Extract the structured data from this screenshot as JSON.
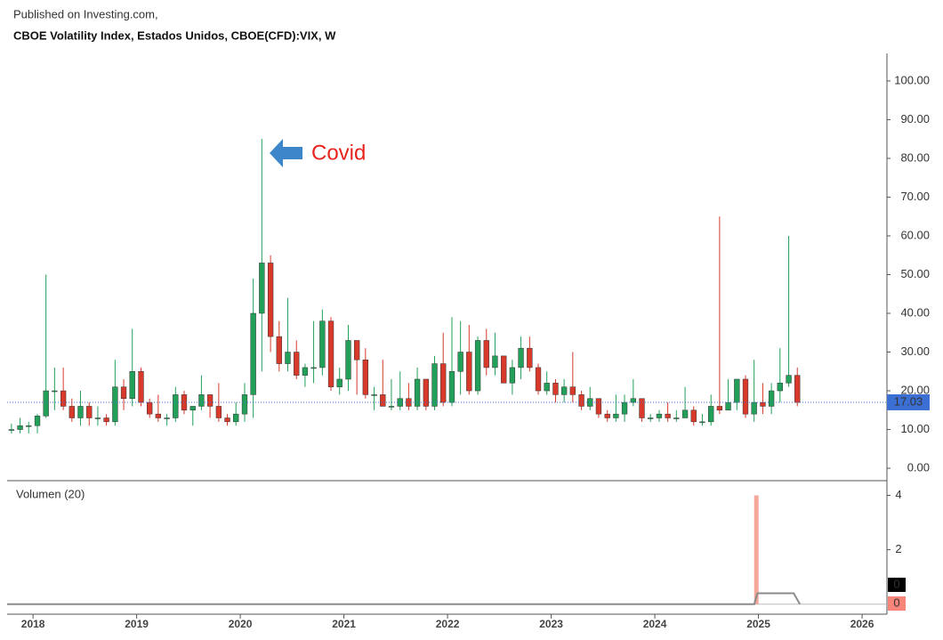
{
  "header": {
    "source": "Published on Investing.com, ",
    "title": "CBOE Volatility Index, Estados Unidos, CBOE(CFD):VIX, W"
  },
  "chart_data": {
    "type": "candlestick",
    "x": [
      2017.792,
      2017.875,
      2017.958,
      2018.042,
      2018.125,
      2018.208,
      2018.292,
      2018.375,
      2018.458,
      2018.542,
      2018.625,
      2018.708,
      2018.792,
      2018.875,
      2018.958,
      2019.042,
      2019.125,
      2019.208,
      2019.292,
      2019.375,
      2019.458,
      2019.542,
      2019.625,
      2019.708,
      2019.792,
      2019.875,
      2019.958,
      2020.042,
      2020.125,
      2020.208,
      2020.292,
      2020.375,
      2020.458,
      2020.542,
      2020.625,
      2020.708,
      2020.792,
      2020.875,
      2020.958,
      2021.042,
      2021.125,
      2021.208,
      2021.292,
      2021.375,
      2021.458,
      2021.542,
      2021.625,
      2021.708,
      2021.792,
      2021.875,
      2021.958,
      2022.042,
      2022.125,
      2022.208,
      2022.292,
      2022.375,
      2022.458,
      2022.542,
      2022.625,
      2022.708,
      2022.792,
      2022.875,
      2022.958,
      2023.042,
      2023.125,
      2023.208,
      2023.292,
      2023.375,
      2023.458,
      2023.542,
      2023.625,
      2023.708,
      2023.792,
      2023.875,
      2023.958,
      2024.042,
      2024.125,
      2024.208,
      2024.292,
      2024.375,
      2024.458,
      2024.542,
      2024.625,
      2024.708,
      2024.792,
      2024.875,
      2024.958,
      2025.042,
      2025.125,
      2025.208,
      2025.292,
      2025.375
    ],
    "open": [
      10,
      10,
      11,
      11,
      13.5,
      20,
      20,
      16,
      13,
      16,
      13,
      13,
      12,
      21,
      18,
      25,
      17,
      14,
      13,
      13,
      19,
      15,
      16,
      19,
      16,
      13,
      12,
      14,
      19,
      40,
      53,
      34,
      27,
      30,
      24,
      26,
      26,
      38,
      21,
      23,
      33,
      28,
      19,
      19,
      16,
      16,
      18,
      16,
      23,
      16,
      27,
      17,
      25,
      30,
      20,
      33,
      26,
      29,
      22,
      26,
      31,
      26,
      20,
      22,
      19,
      21,
      19,
      16,
      18,
      14,
      13,
      14,
      17,
      18,
      13,
      13,
      14,
      13,
      13,
      15,
      12,
      12,
      16,
      15,
      17,
      23,
      14,
      17,
      16,
      20,
      22,
      24
    ],
    "high": [
      11.5,
      13,
      12,
      14,
      50,
      26,
      26,
      18,
      20,
      17,
      16,
      14,
      28,
      23,
      36,
      26,
      18,
      19,
      14,
      21,
      20,
      16,
      24,
      19,
      22,
      14,
      17,
      22,
      49,
      85,
      55,
      38,
      44,
      33,
      27,
      38,
      41,
      39,
      26,
      37,
      33,
      31,
      21,
      28,
      23,
      25,
      22,
      26,
      23,
      29,
      35,
      39,
      38,
      37,
      34,
      36,
      35,
      29,
      28,
      34,
      34,
      27,
      25,
      23,
      23,
      30,
      20,
      21,
      18,
      15,
      19,
      19,
      23,
      18,
      14,
      15,
      17,
      15,
      21,
      16,
      14,
      19,
      65,
      23,
      23,
      24,
      28,
      22,
      22,
      31,
      60,
      26
    ],
    "low": [
      9,
      9,
      9,
      9,
      13,
      15,
      15,
      12,
      11,
      11,
      11,
      11,
      11,
      15,
      16,
      16,
      13,
      12,
      11,
      12,
      14,
      11,
      15,
      13,
      12,
      11,
      11,
      12,
      13,
      25,
      30,
      25,
      25,
      23,
      21,
      22,
      24,
      20,
      19,
      20,
      19,
      18,
      15,
      16,
      15,
      15,
      15,
      15,
      15,
      15,
      16,
      16,
      19,
      19,
      19,
      24,
      24,
      22,
      19,
      23,
      25,
      19,
      19,
      17,
      17,
      17,
      15,
      15,
      13,
      12,
      12,
      12,
      16,
      12,
      12,
      12,
      12,
      12,
      13,
      11,
      11,
      11,
      14,
      15,
      15,
      13,
      12,
      14,
      14,
      17,
      21,
      16
    ],
    "close": [
      10,
      11,
      11,
      13.5,
      20,
      20,
      16,
      13,
      16,
      13,
      13,
      12,
      21,
      18,
      25,
      17,
      14,
      13,
      13,
      19,
      15,
      16,
      19,
      16,
      13,
      12,
      14,
      19,
      40,
      53,
      34,
      27,
      30,
      24,
      26,
      26,
      38,
      21,
      23,
      33,
      28,
      19,
      19,
      16,
      16,
      18,
      16,
      23,
      16,
      27,
      17,
      25,
      30,
      20,
      33,
      26,
      29,
      22,
      26,
      31,
      26,
      20,
      22,
      19,
      21,
      19,
      16,
      18,
      14,
      13,
      14,
      17,
      18,
      13,
      13,
      14,
      13,
      13,
      15,
      12,
      12,
      16,
      15,
      17,
      23,
      14,
      17,
      16,
      20,
      22,
      24,
      17
    ],
    "up_color": "#22a05a",
    "down_color": "#d8392b",
    "xlim": [
      2017.75,
      2026.24
    ],
    "xticks": [
      2018,
      2019,
      2020,
      2021,
      2022,
      2023,
      2024,
      2025,
      2026
    ],
    "ylim": [
      -3.2,
      107.1
    ],
    "yticks": [
      {
        "value": 0,
        "label": "0.00"
      },
      {
        "value": 10,
        "label": "10.00"
      },
      {
        "value": 20,
        "label": "20.00"
      },
      {
        "value": 30,
        "label": "30.00"
      },
      {
        "value": 40,
        "label": "40.00"
      },
      {
        "value": 50,
        "label": "50.00"
      },
      {
        "value": 60,
        "label": "60.00"
      },
      {
        "value": 70,
        "label": "70.00"
      },
      {
        "value": 80,
        "label": "80.00"
      },
      {
        "value": 90,
        "label": "90.00"
      },
      {
        "value": 100,
        "label": "100.00"
      }
    ],
    "last_value": 17.03,
    "annotation": "Covid",
    "volume": {
      "label": "Volumen (20)",
      "x": [
        2024.98
      ],
      "values": [
        4
      ],
      "color": "#f4a79a",
      "ma_x": [
        2017.75,
        2024.96,
        2024.99,
        2025.34,
        2025.4
      ],
      "ma_values": [
        0,
        0,
        0.4,
        0.4,
        0
      ],
      "ma_color": "#8c8c8c",
      "ylim": [
        -0.37,
        4.54
      ],
      "yticks": [
        2,
        4
      ],
      "last_ma": 0,
      "last_volume": 0
    }
  }
}
